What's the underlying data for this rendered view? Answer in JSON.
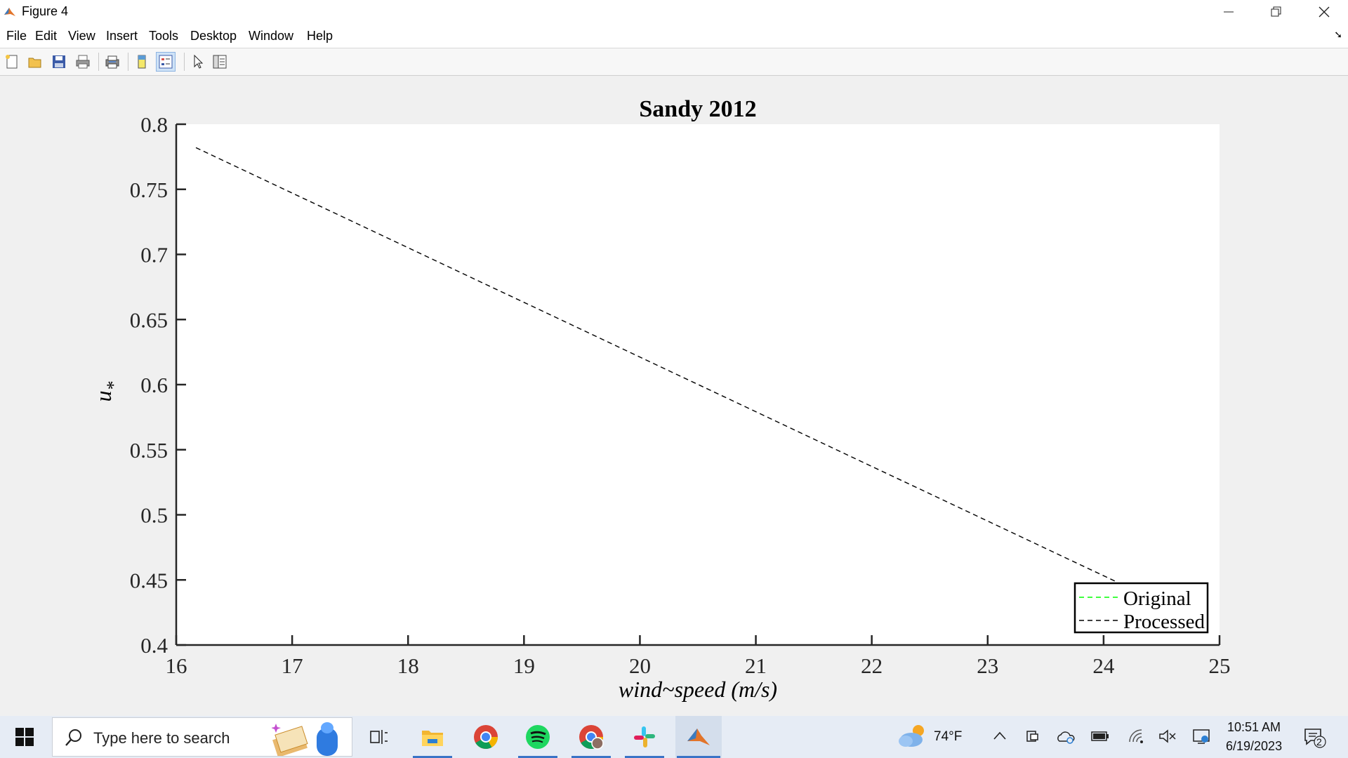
{
  "window": {
    "title": "Figure 4",
    "controls": {
      "minimize": "—",
      "restore": "❐",
      "close": "✕"
    }
  },
  "menu": {
    "items": [
      "File",
      "Edit",
      "View",
      "Insert",
      "Tools",
      "Desktop",
      "Window",
      "Help"
    ]
  },
  "toolbar": {
    "buttons": [
      "new-figure",
      "open-file",
      "save-figure",
      "print-figure",
      "print-preview",
      "link-plot",
      "insert-legend",
      "edit-plot-pointer",
      "property-inspector"
    ],
    "active": "insert-legend"
  },
  "chart_data": {
    "type": "line",
    "title": "Sandy 2012",
    "xlabel": "wind~speed (m/s)",
    "ylabel": "u*",
    "xlim": [
      16,
      25
    ],
    "ylim": [
      0.4,
      0.8
    ],
    "xticks": [
      16,
      17,
      18,
      19,
      20,
      21,
      22,
      23,
      24,
      25
    ],
    "yticks": [
      0.4,
      0.45,
      0.5,
      0.55,
      0.6,
      0.65,
      0.7,
      0.75,
      0.8
    ],
    "xtick_labels": [
      "16",
      "17",
      "18",
      "19",
      "20",
      "21",
      "22",
      "23",
      "24",
      "25"
    ],
    "ytick_labels": [
      "0.4",
      "0.45",
      "0.5",
      "0.55",
      "0.6",
      "0.65",
      "0.7",
      "0.75",
      "0.8"
    ],
    "grid": false,
    "legend_position": "bottom-right",
    "series": [
      {
        "name": "Original",
        "x": [],
        "y": [],
        "color": "#00ff00",
        "style": "dashed"
      },
      {
        "name": "Processed",
        "x": [
          16.17,
          24.1
        ],
        "y": [
          0.782,
          0.449
        ],
        "color": "#000000",
        "style": "dashed"
      }
    ]
  },
  "taskbar": {
    "search_placeholder": "Type here to search",
    "weather": "74°F",
    "time": "10:51 AM",
    "date": "6/19/2023",
    "notification_count": "2",
    "accent": "#3a73c6"
  }
}
